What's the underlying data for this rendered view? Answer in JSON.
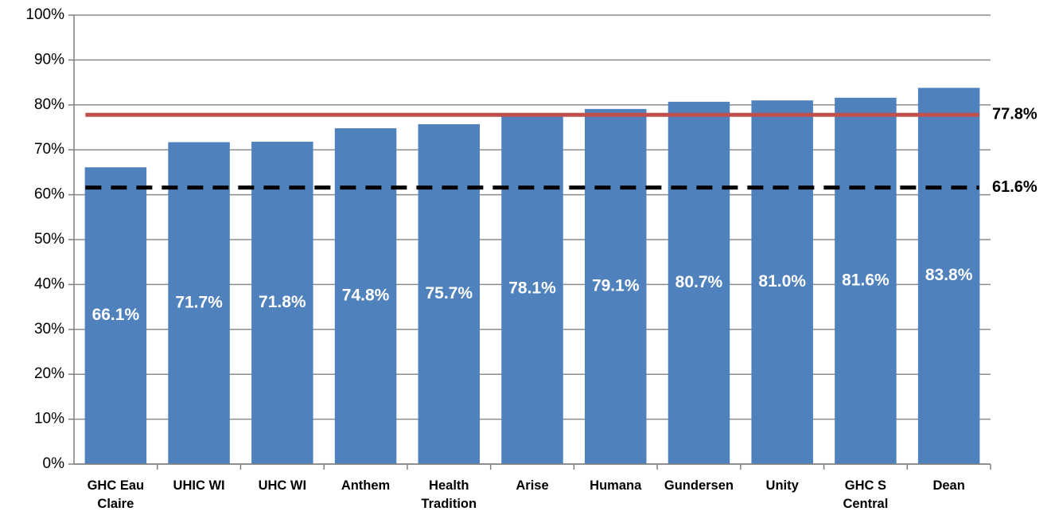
{
  "chart_data": {
    "type": "bar",
    "categories": [
      "GHC Eau Claire",
      "UHIC WI",
      "UHC WI",
      "Anthem",
      "Health Tradition",
      "Arise",
      "Humana",
      "Gundersen",
      "Unity",
      "GHC S Central",
      "Dean"
    ],
    "values": [
      66.1,
      71.7,
      71.8,
      74.8,
      75.7,
      78.1,
      79.1,
      80.7,
      81.0,
      81.6,
      83.8
    ],
    "value_labels": [
      "66.1%",
      "71.7%",
      "71.8%",
      "74.8%",
      "75.7%",
      "78.1%",
      "79.1%",
      "80.7%",
      "81.0%",
      "81.6%",
      "83.8%"
    ],
    "color": "#4f81bd",
    "ylim": [
      0,
      100
    ],
    "yticks": [
      {
        "value": 0,
        "label": "0%"
      },
      {
        "value": 10,
        "label": "10%"
      },
      {
        "value": 20,
        "label": "20%"
      },
      {
        "value": 30,
        "label": "30%"
      },
      {
        "value": 40,
        "label": "40%"
      },
      {
        "value": 50,
        "label": "50%"
      },
      {
        "value": 60,
        "label": "60%"
      },
      {
        "value": 70,
        "label": "70%"
      },
      {
        "value": 80,
        "label": "80%"
      },
      {
        "value": 90,
        "label": "90%"
      },
      {
        "value": 100,
        "label": "100%"
      }
    ],
    "grid": true,
    "reference_lines": [
      {
        "value": 77.8,
        "label": "77.8%",
        "color": "#c0504d",
        "style": "solid"
      },
      {
        "value": 61.6,
        "label": "61.6%",
        "color": "#000000",
        "style": "dashed"
      }
    ]
  }
}
